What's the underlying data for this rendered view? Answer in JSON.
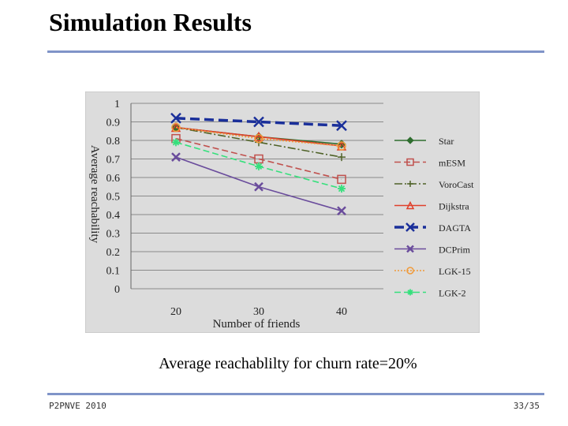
{
  "slide": {
    "title": "Simulation Results",
    "caption": "Average reachablilty for churn rate=20%",
    "footer_left": "P2PNVE 2010",
    "footer_right": "33/35"
  },
  "colors": {
    "rule": "#8094c8",
    "plot_bg": "#dcdcdc",
    "grid": "#8a8a8a"
  },
  "chart_data": {
    "type": "line",
    "title": "",
    "xlabel": "Number of friends",
    "ylabel": "Average reachability",
    "categories": [
      "20",
      "30",
      "40"
    ],
    "ylim": [
      0,
      1
    ],
    "yticks": [
      "0",
      "0.1",
      "0.2",
      "0.3",
      "0.4",
      "0.5",
      "0.6",
      "0.7",
      "0.8",
      "0.9",
      "1"
    ],
    "legend_position": "right",
    "series": [
      {
        "name": "Star",
        "values": [
          0.87,
          0.82,
          0.78
        ],
        "color": "#2f6e2f",
        "dash": "",
        "marker": "diamond"
      },
      {
        "name": "mESM",
        "values": [
          0.81,
          0.7,
          0.59
        ],
        "color": "#c0504d",
        "dash": "8,4",
        "marker": "square"
      },
      {
        "name": "VoroCast",
        "values": [
          0.87,
          0.79,
          0.71
        ],
        "color": "#4f6228",
        "dash": "10,3,2,3",
        "marker": "plus"
      },
      {
        "name": "Dijkstra",
        "values": [
          0.87,
          0.82,
          0.77
        ],
        "color": "#e0402b",
        "dash": "",
        "marker": "triangle"
      },
      {
        "name": "DAGTA",
        "values": [
          0.92,
          0.9,
          0.88
        ],
        "color": "#1a2f9a",
        "dash": "12,6",
        "marker": "x"
      },
      {
        "name": "DCPrim",
        "values": [
          0.71,
          0.55,
          0.42
        ],
        "color": "#6a4c9c",
        "dash": "",
        "marker": "x"
      },
      {
        "name": "LGK-15",
        "values": [
          0.87,
          0.81,
          0.77
        ],
        "color": "#f09a3a",
        "dash": "2,2",
        "marker": "circle"
      },
      {
        "name": "LGK-2",
        "values": [
          0.79,
          0.66,
          0.54
        ],
        "color": "#35e07c",
        "dash": "8,4",
        "marker": "asterisk"
      }
    ]
  }
}
